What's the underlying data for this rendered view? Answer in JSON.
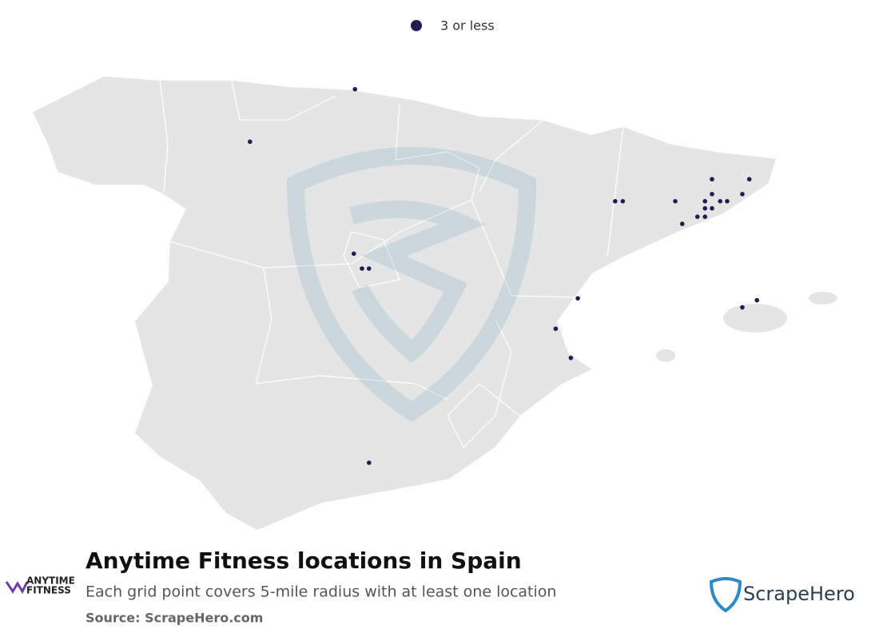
{
  "legend": {
    "label": "3 or less",
    "color": "#241c50"
  },
  "map": {
    "points": [
      {
        "lon": -3.82,
        "lat": 43.19
      },
      {
        "lon": -5.62,
        "lat": 42.38
      },
      {
        "lon": -3.84,
        "lat": 40.65
      },
      {
        "lon": -3.7,
        "lat": 40.42
      },
      {
        "lon": -3.58,
        "lat": 40.42
      },
      {
        "lon": 0.0,
        "lat": 39.96
      },
      {
        "lon": -0.38,
        "lat": 39.49
      },
      {
        "lon": -0.12,
        "lat": 39.04
      },
      {
        "lon": -3.58,
        "lat": 37.42
      },
      {
        "lon": 0.64,
        "lat": 41.46
      },
      {
        "lon": 0.77,
        "lat": 41.46
      },
      {
        "lon": 1.67,
        "lat": 41.46
      },
      {
        "lon": 1.79,
        "lat": 41.11
      },
      {
        "lon": 2.3,
        "lat": 41.8
      },
      {
        "lon": 2.94,
        "lat": 41.8
      },
      {
        "lon": 2.3,
        "lat": 41.57
      },
      {
        "lon": 2.82,
        "lat": 41.57
      },
      {
        "lon": 2.18,
        "lat": 41.46
      },
      {
        "lon": 2.44,
        "lat": 41.46
      },
      {
        "lon": 2.56,
        "lat": 41.46
      },
      {
        "lon": 2.18,
        "lat": 41.35
      },
      {
        "lon": 2.3,
        "lat": 41.35
      },
      {
        "lon": 2.05,
        "lat": 41.22
      },
      {
        "lon": 2.18,
        "lat": 41.22
      },
      {
        "lon": 2.82,
        "lat": 39.82
      },
      {
        "lon": 3.07,
        "lat": 39.93
      }
    ]
  },
  "footer": {
    "title": "Anytime Fitness locations in Spain",
    "subtitle": "Each grid point covers 5-mile radius with at least one location",
    "source": "Source: ScrapeHero.com",
    "brand_logo": [
      "ANYTIME",
      "FITNESS"
    ],
    "publisher_logo": "ScrapeHero"
  }
}
